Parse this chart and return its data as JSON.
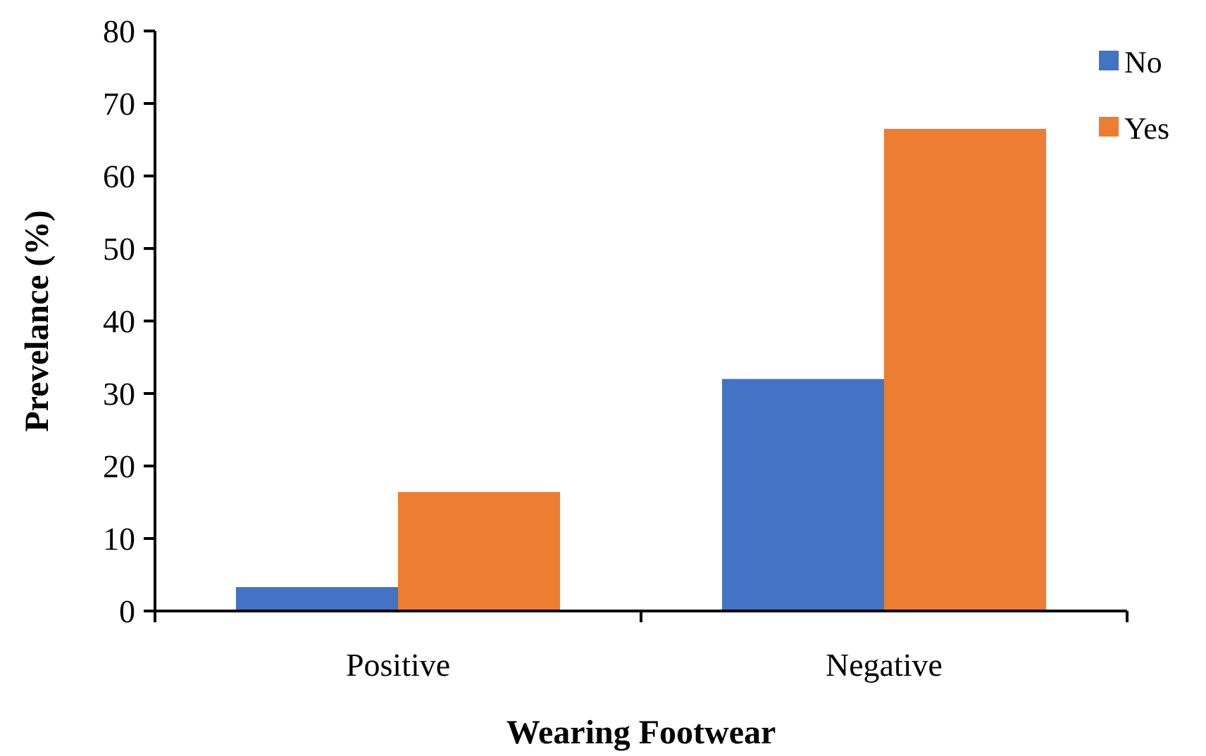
{
  "chart_data": {
    "type": "bar",
    "xlabel": "Wearing Footwear",
    "ylabel": "Prevelance (%)",
    "categories": [
      "Positive",
      "Negative"
    ],
    "series": [
      {
        "name": "No",
        "color": "#4472c4",
        "values": [
          3.3,
          32.0
        ]
      },
      {
        "name": "Yes",
        "color": "#ed7d31",
        "values": [
          16.4,
          66.5
        ]
      }
    ],
    "ylim": [
      0,
      80
    ],
    "yticks": [
      0,
      10,
      20,
      30,
      40,
      50,
      60,
      70,
      80
    ],
    "grid": false,
    "legend": "top right"
  }
}
